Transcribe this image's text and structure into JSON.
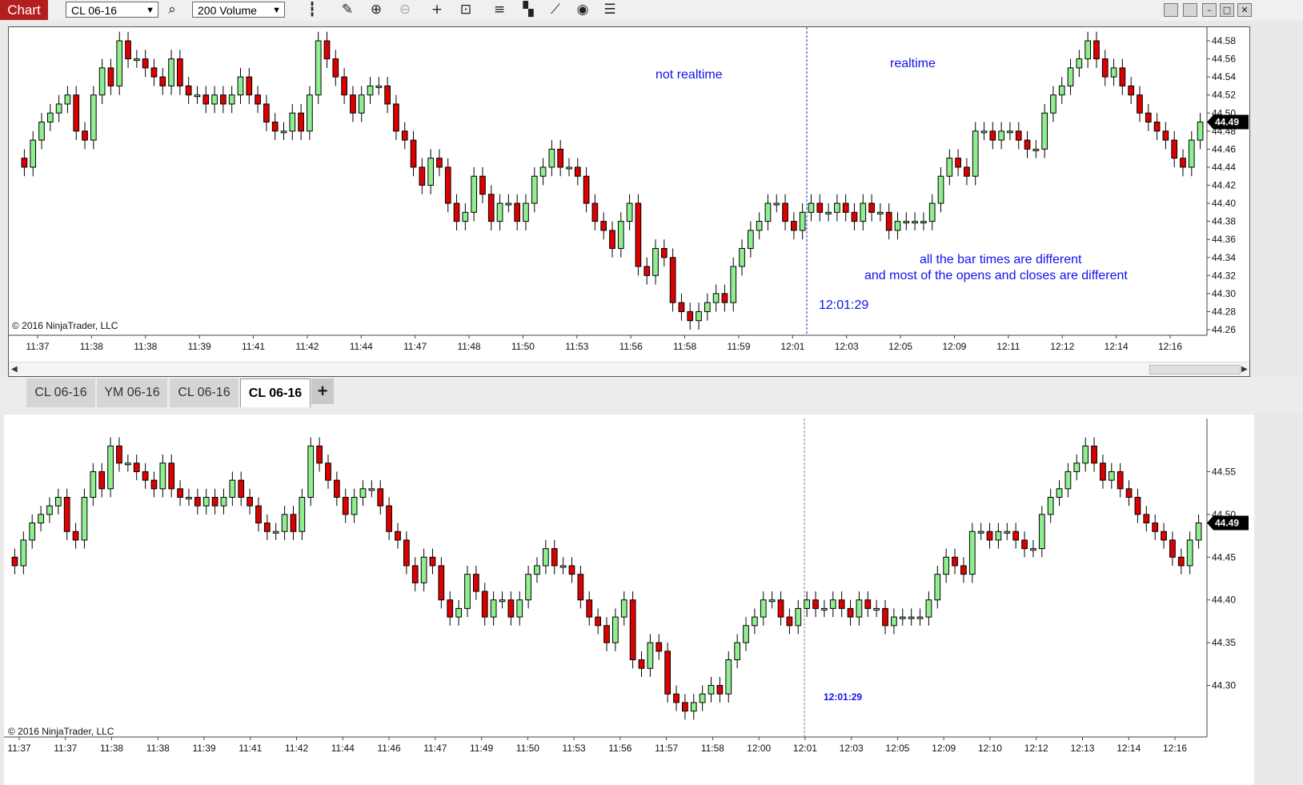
{
  "app": {
    "chart_label": "Chart",
    "instrument": "CL 06-16",
    "bar_type": "200 Volume"
  },
  "toolbar": {
    "icons": [
      "search-icon",
      "bar-style-icon",
      "drawing-tool-icon",
      "zoom-in-icon",
      "zoom-out-icon",
      "crosshair-icon",
      "data-box-icon",
      "indicators-icon",
      "strategies-icon",
      "drawing-objects-icon",
      "refresh-icon",
      "properties-icon"
    ]
  },
  "window_controls": [
    "tile-left-icon",
    "tile-right-icon",
    "minimize-icon",
    "maximize-icon",
    "close-icon"
  ],
  "top_chart": {
    "annotation_left": "not realtime",
    "annotation_right": "realtime",
    "annotation_note_line1": "all the bar times are different",
    "annotation_note_line2": "and most of the opens and closes are different",
    "marker_time": "12:01:29",
    "copyright": "© 2016 NinjaTrader, LLC",
    "price_flag": "44.49",
    "x_labels": [
      "11:37",
      "11:38",
      "11:38",
      "11:39",
      "11:41",
      "11:42",
      "11:44",
      "11:47",
      "11:48",
      "11:50",
      "11:53",
      "11:56",
      "11:58",
      "11:59",
      "12:01",
      "12:03",
      "12:05",
      "12:09",
      "12:11",
      "12:12",
      "12:14",
      "12:16"
    ],
    "y_ticks": [
      "44.58",
      "44.56",
      "44.54",
      "44.52",
      "44.50",
      "44.48",
      "44.46",
      "44.44",
      "44.42",
      "44.40",
      "44.38",
      "44.36",
      "44.34",
      "44.32",
      "44.30",
      "44.28",
      "44.26"
    ]
  },
  "tabs": {
    "items": [
      "CL 06-16",
      "YM 06-16",
      "CL 06-16",
      "CL 06-16"
    ],
    "active_index": 3,
    "add_label": "+"
  },
  "bottom_chart": {
    "marker_time": "12:01:29",
    "copyright": "© 2016 NinjaTrader, LLC",
    "price_flag": "44.49",
    "x_labels": [
      "11:37",
      "11:37",
      "11:38",
      "11:38",
      "11:39",
      "11:41",
      "11:42",
      "11:44",
      "11:46",
      "11:47",
      "11:49",
      "11:50",
      "11:53",
      "11:56",
      "11:57",
      "11:58",
      "12:00",
      "12:01",
      "12:03",
      "12:05",
      "12:09",
      "12:10",
      "12:12",
      "12:13",
      "12:14",
      "12:16"
    ],
    "y_ticks": [
      "44.55",
      "44.50",
      "44.45",
      "44.40",
      "44.35",
      "44.30"
    ]
  },
  "colors": {
    "up_candle": "#90ee90",
    "down_candle": "#dd0000",
    "annotation": "#1111ee",
    "chart_label_bg": "#b31f1f"
  },
  "chart_data": [
    {
      "type": "candlestick",
      "title": "",
      "instrument": "CL 06-16",
      "bars": "200 Volume",
      "ylim": [
        44.26,
        44.58
      ],
      "closes": [
        44.44,
        44.47,
        44.49,
        44.5,
        44.51,
        44.52,
        44.48,
        44.47,
        44.52,
        44.55,
        44.53,
        44.58,
        44.56,
        44.56,
        44.55,
        44.54,
        44.53,
        44.56,
        44.53,
        44.52,
        44.52,
        44.51,
        44.52,
        44.51,
        44.52,
        44.54,
        44.52,
        44.51,
        44.49,
        44.48,
        44.48,
        44.5,
        44.48,
        44.52,
        44.58,
        44.56,
        44.54,
        44.52,
        44.5,
        44.52,
        44.53,
        44.53,
        44.51,
        44.48,
        44.47,
        44.44,
        44.42,
        44.45,
        44.44,
        44.4,
        44.38,
        44.39,
        44.43,
        44.41,
        44.38,
        44.4,
        44.4,
        44.38,
        44.4,
        44.43,
        44.44,
        44.46,
        44.44,
        44.44,
        44.43,
        44.4,
        44.38,
        44.37,
        44.35,
        44.38,
        44.4,
        44.33,
        44.32,
        44.35,
        44.34,
        44.29,
        44.28,
        44.27,
        44.28,
        44.29,
        44.3,
        44.29,
        44.33,
        44.35,
        44.37,
        44.38,
        44.4,
        44.4,
        44.38,
        44.37,
        44.39,
        44.4,
        44.39,
        44.39,
        44.4,
        44.39,
        44.38,
        44.4,
        44.39,
        44.39,
        44.37,
        44.38,
        44.38,
        44.38,
        44.38,
        44.4,
        44.43,
        44.45,
        44.44,
        44.43,
        44.48,
        44.48,
        44.47,
        44.48,
        44.48,
        44.47,
        44.46,
        44.46,
        44.5,
        44.52,
        44.53,
        44.55,
        44.56,
        44.58,
        44.56,
        44.54,
        44.55,
        44.53,
        44.52,
        44.5,
        44.49,
        44.48,
        44.47,
        44.45,
        44.44,
        44.47,
        44.49
      ],
      "last_price": 44.49
    },
    {
      "type": "candlestick",
      "title": "",
      "instrument": "CL 06-16",
      "bars": "200 Volume",
      "ylim": [
        44.25,
        44.6
      ],
      "closes": [
        44.44,
        44.47,
        44.49,
        44.5,
        44.51,
        44.52,
        44.48,
        44.47,
        44.52,
        44.55,
        44.53,
        44.58,
        44.56,
        44.56,
        44.55,
        44.54,
        44.53,
        44.56,
        44.53,
        44.52,
        44.52,
        44.51,
        44.52,
        44.51,
        44.52,
        44.54,
        44.52,
        44.51,
        44.49,
        44.48,
        44.48,
        44.5,
        44.48,
        44.52,
        44.58,
        44.56,
        44.54,
        44.52,
        44.5,
        44.52,
        44.53,
        44.53,
        44.51,
        44.48,
        44.47,
        44.44,
        44.42,
        44.45,
        44.44,
        44.4,
        44.38,
        44.39,
        44.43,
        44.41,
        44.38,
        44.4,
        44.4,
        44.38,
        44.4,
        44.43,
        44.44,
        44.46,
        44.44,
        44.44,
        44.43,
        44.4,
        44.38,
        44.37,
        44.35,
        44.38,
        44.4,
        44.33,
        44.32,
        44.35,
        44.34,
        44.29,
        44.28,
        44.27,
        44.28,
        44.29,
        44.3,
        44.29,
        44.33,
        44.35,
        44.37,
        44.38,
        44.4,
        44.4,
        44.38,
        44.37,
        44.39,
        44.4,
        44.39,
        44.39,
        44.4,
        44.39,
        44.38,
        44.4,
        44.39,
        44.39,
        44.37,
        44.38,
        44.38,
        44.38,
        44.38,
        44.4,
        44.43,
        44.45,
        44.44,
        44.43,
        44.48,
        44.48,
        44.47,
        44.48,
        44.48,
        44.47,
        44.46,
        44.46,
        44.5,
        44.52,
        44.53,
        44.55,
        44.56,
        44.58,
        44.56,
        44.54,
        44.55,
        44.53,
        44.52,
        44.5,
        44.49,
        44.48,
        44.47,
        44.45,
        44.44,
        44.47,
        44.49
      ],
      "last_price": 44.49
    }
  ]
}
